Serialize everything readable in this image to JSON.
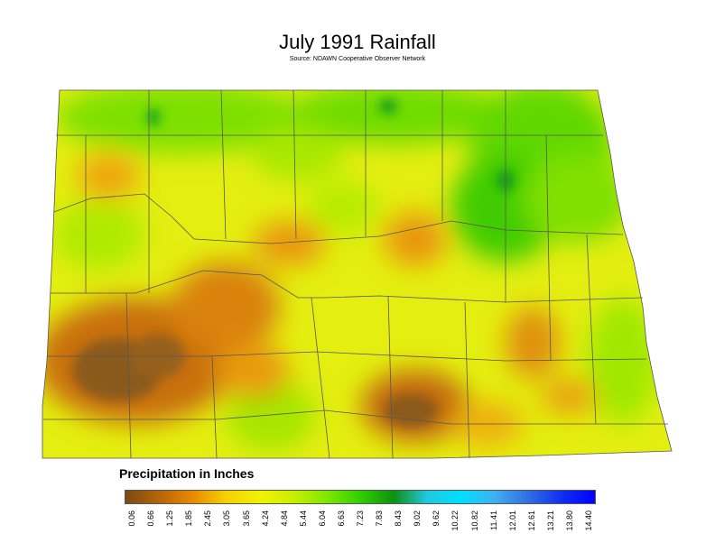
{
  "title": "July 1991 Rainfall",
  "subtitle": "Source: NDAWN Cooperative Observer Network",
  "legend": {
    "title": "Precipitation in Inches",
    "ticks": [
      "0.06",
      "0.66",
      "1.25",
      "1.85",
      "2.45",
      "3.05",
      "3.65",
      "4.24",
      "4.84",
      "5.44",
      "6.04",
      "6.63",
      "7.23",
      "7.83",
      "8.43",
      "9.02",
      "9.62",
      "10.22",
      "10.82",
      "11.41",
      "12.01",
      "12.61",
      "13.21",
      "13.80",
      "14.40"
    ],
    "gradient_colors": [
      "#7a4a10",
      "#b5650a",
      "#e88a00",
      "#f5d000",
      "#f2f200",
      "#c8f000",
      "#7ee800",
      "#2fd000",
      "#109010",
      "#20c8e0",
      "#00e0ff",
      "#40b0f0",
      "#3070e0",
      "#1030f0",
      "#0000ff"
    ]
  },
  "colors": {
    "dry_brown": "#8a5a1a",
    "orange": "#e08a10",
    "yellow": "#f0ee00",
    "green": "#60dd00",
    "dark_green": "#149a1a",
    "boundary": "#555555"
  }
}
